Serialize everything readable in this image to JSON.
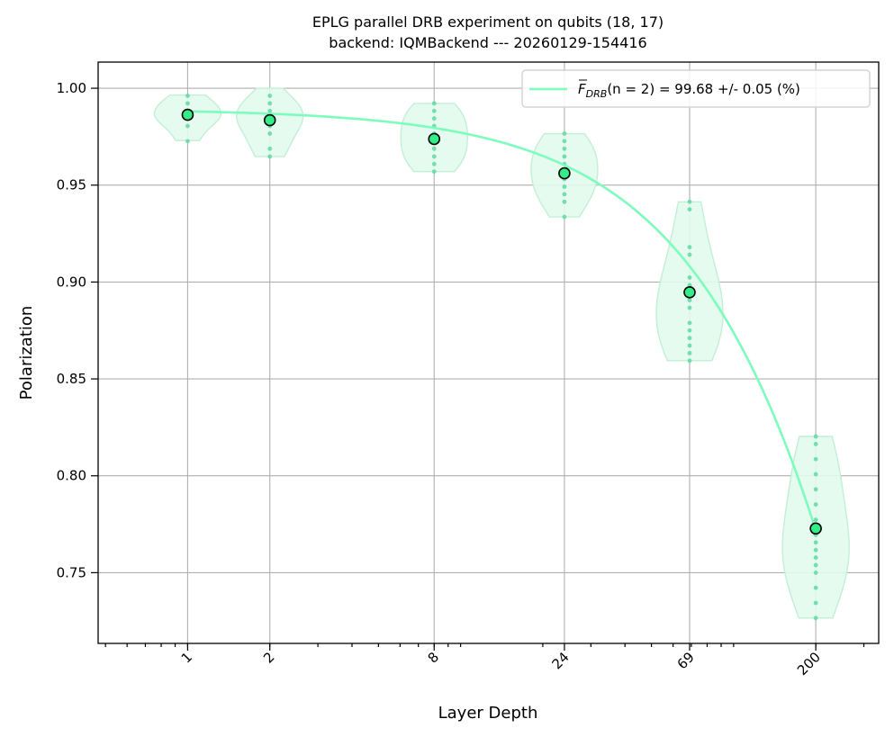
{
  "chart_data": {
    "type": "scatter",
    "title": "EPLG parallel DRB experiment on qubits (18, 17)",
    "subtitle": "backend: IQMBackend --- 20260129-154416",
    "xlabel": "Layer Depth",
    "ylabel": "Polarization",
    "x_scale": "log",
    "xlim": [
      0.47,
      340
    ],
    "ylim": [
      0.7135,
      1.0135
    ],
    "x_ticks": [
      1,
      2,
      8,
      24,
      69,
      200
    ],
    "x_tick_labels": [
      "1",
      "2",
      "8",
      "24",
      "69",
      "200"
    ],
    "y_ticks": [
      0.75,
      0.8,
      0.85,
      0.9,
      0.95,
      1.0
    ],
    "y_tick_labels": [
      "0.75",
      "0.80",
      "0.85",
      "0.90",
      "0.95",
      "1.00"
    ],
    "grid": true,
    "legend_position": "top-right",
    "colors": {
      "series": "#7dfcbd",
      "marker_fill": "#33ee88",
      "violin_fill": "#e2fbee",
      "violin_edge": "#c2efd6"
    },
    "series": [
      {
        "name_prefix": "F",
        "name_subscript": "DRB",
        "name_rest": "(n = 2) = 99.68 +/- 0.05 (%)",
        "mean_points": [
          {
            "x": 1,
            "y": 0.9863
          },
          {
            "x": 2,
            "y": 0.9835
          },
          {
            "x": 8,
            "y": 0.9738
          },
          {
            "x": 24,
            "y": 0.9561
          },
          {
            "x": 69,
            "y": 0.8947
          },
          {
            "x": 200,
            "y": 0.7728
          }
        ],
        "fit_curve": {
          "a": 0.9893,
          "f": 0.99876,
          "x_from": 1,
          "x_to": 200
        }
      }
    ],
    "samples": [
      {
        "x": 1,
        "values": [
          0.9961,
          0.9922,
          0.9883,
          0.9863,
          0.9844,
          0.9805,
          0.9727
        ],
        "range": [
          0.973,
          0.9965
        ]
      },
      {
        "x": 2,
        "values": [
          0.9961,
          0.9922,
          0.9883,
          0.9863,
          0.9844,
          0.9805,
          0.9766,
          0.9688,
          0.9648
        ],
        "range": [
          0.9648,
          1.0
        ]
      },
      {
        "x": 8,
        "values": [
          0.9922,
          0.9883,
          0.9844,
          0.9805,
          0.9766,
          0.9727,
          0.9688,
          0.9648,
          0.9609,
          0.957
        ],
        "range": [
          0.957,
          0.9922
        ]
      },
      {
        "x": 24,
        "values": [
          0.9766,
          0.9727,
          0.9688,
          0.9648,
          0.9609,
          0.957,
          0.9531,
          0.9492,
          0.9453,
          0.9414,
          0.9336
        ],
        "range": [
          0.9336,
          0.9766
        ]
      },
      {
        "x": 69,
        "values": [
          0.9414,
          0.9375,
          0.918,
          0.9141,
          0.9023,
          0.8984,
          0.8945,
          0.8906,
          0.8867,
          0.8789,
          0.875,
          0.8711,
          0.8672,
          0.8633,
          0.8594
        ],
        "range": [
          0.8594,
          0.9414
        ]
      },
      {
        "x": 200,
        "values": [
          0.8203,
          0.8164,
          0.8086,
          0.8008,
          0.793,
          0.7852,
          0.7773,
          0.7695,
          0.7656,
          0.7617,
          0.7578,
          0.7539,
          0.75,
          0.7422,
          0.7344,
          0.7266
        ],
        "range": [
          0.7266,
          0.8203
        ]
      }
    ]
  }
}
